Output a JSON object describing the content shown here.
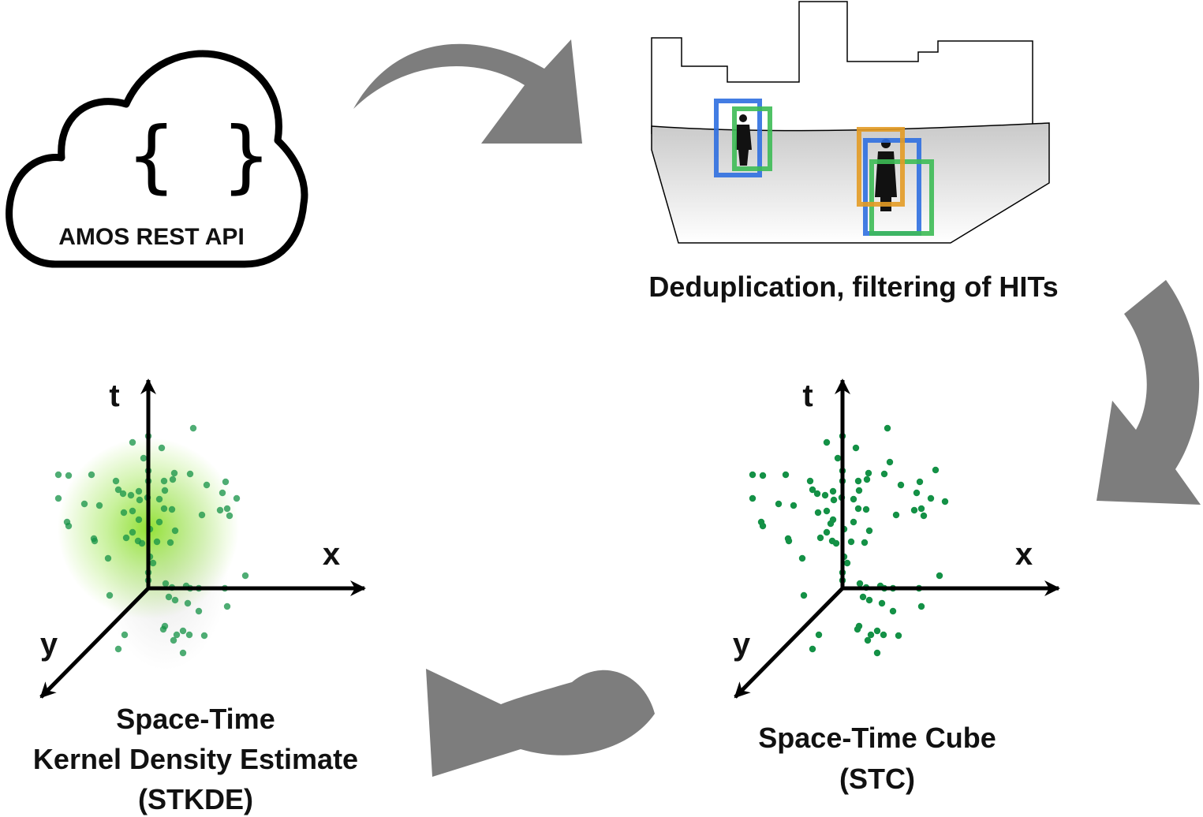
{
  "cloud": {
    "glyph": "{ }",
    "label": "AMOS REST API"
  },
  "dedup": {
    "label": "Deduplication, filtering of HITs"
  },
  "stc": {
    "axis_t": "t",
    "axis_x": "x",
    "axis_y": "y",
    "line1": "Space-Time Cube",
    "line2": "(STC)",
    "point_color": "#149146"
  },
  "stkde": {
    "axis_t": "t",
    "axis_x": "x",
    "axis_y": "y",
    "line1": "Space-Time",
    "line2": "Kernel Density Estimate",
    "line3": "(STKDE)",
    "point_color": "#149146",
    "density_color": "#8ee02a"
  },
  "colors": {
    "arrow": "#7d7d7d",
    "box_blue": "#2f6fe0",
    "box_green": "#3dbb55",
    "box_orange": "#e39b25"
  }
}
